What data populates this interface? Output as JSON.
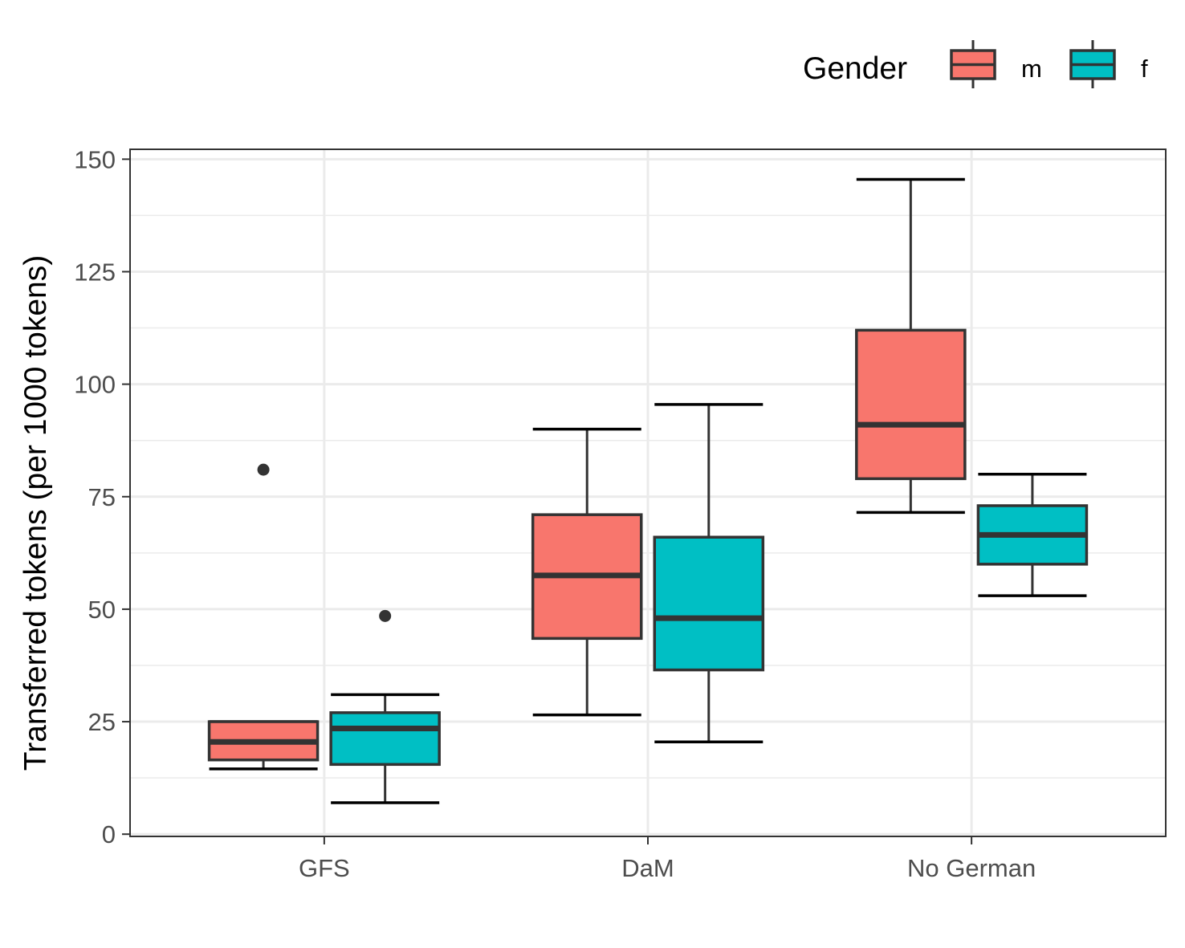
{
  "chart_data": {
    "type": "boxplot",
    "title": "",
    "xlabel": "",
    "ylabel": "Transferred tokens (per 1000 tokens)",
    "ylim": [
      0,
      150
    ],
    "y_ticks": [
      0,
      25,
      50,
      75,
      100,
      125,
      150
    ],
    "y_tick_labels": [
      "0",
      "25",
      "50",
      "75",
      "100",
      "125",
      "150"
    ],
    "categories": [
      "GFS",
      "DaM",
      "No German"
    ],
    "grid": true,
    "legend": {
      "title": "Gender",
      "position": "top-right"
    },
    "series": [
      {
        "name": "m",
        "color": "#F8766D",
        "boxes": [
          {
            "whisker_low": 14.5,
            "q1": 16.5,
            "median": 20.5,
            "q3": 25,
            "whisker_high": 25,
            "outliers": [
              81
            ]
          },
          {
            "whisker_low": 26.5,
            "q1": 43.5,
            "median": 57.5,
            "q3": 71,
            "whisker_high": 90,
            "outliers": []
          },
          {
            "whisker_low": 71.5,
            "q1": 79,
            "median": 91,
            "q3": 112,
            "whisker_high": 145.5,
            "outliers": []
          }
        ]
      },
      {
        "name": "f",
        "color": "#00BFC4",
        "boxes": [
          {
            "whisker_low": 7,
            "q1": 15.5,
            "median": 23.5,
            "q3": 27,
            "whisker_high": 31,
            "outliers": [
              48.5
            ]
          },
          {
            "whisker_low": 20.5,
            "q1": 36.5,
            "median": 48,
            "q3": 66,
            "whisker_high": 95.5,
            "outliers": []
          },
          {
            "whisker_low": 53,
            "q1": 60,
            "median": 66.5,
            "q3": 73,
            "whisker_high": 80,
            "outliers": []
          }
        ]
      }
    ]
  }
}
